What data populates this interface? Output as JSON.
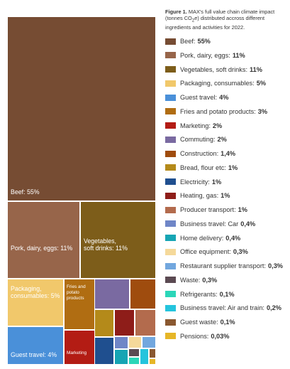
{
  "caption": {
    "figure_label": "Figure 1.",
    "text_before_sub": "MAX's full value chain climate impact (tonnes CO",
    "sub": "2",
    "text_after_sub": "e) distributed accross different ingredients and activities for 2022."
  },
  "chart_data": {
    "type": "treemap",
    "items": [
      {
        "name": "Beef",
        "label": "Beef: 55%",
        "value_text": "55%",
        "value": 55,
        "color": "#764c33"
      },
      {
        "name": "Pork, dairy, eggs",
        "label": "Pork, dairy, eggs: 11%",
        "value_text": "11%",
        "value": 11,
        "color": "#97654a"
      },
      {
        "name": "Vegetables, soft drinks",
        "label": "Vegetables, soft drinks: 11%",
        "value_text": "11%",
        "value": 11,
        "color": "#7d5d1a"
      },
      {
        "name": "Packaging, consumables",
        "label": "Packaging, consumables: 5%",
        "value_text": "5%",
        "value": 5,
        "color": "#f1c86b"
      },
      {
        "name": "Guest travel",
        "label": "Guest travel: 4%",
        "value_text": "4%",
        "value": 4,
        "color": "#4a90d9"
      },
      {
        "name": "Fries and potato products",
        "label": "Fries and potato products: 3%",
        "value_text": "3%",
        "value": 3,
        "color": "#b06d12"
      },
      {
        "name": "Marketing",
        "label": "Marketing: 2%",
        "value_text": "2%",
        "value": 2,
        "color": "#b31c14"
      },
      {
        "name": "Commuting",
        "label": "Commuting: 2%",
        "value_text": "2%",
        "value": 2,
        "color": "#7a6aa1"
      },
      {
        "name": "Construction",
        "label": "Construction: 1,4%",
        "value_text": "1,4%",
        "value": 1.4,
        "color": "#9f4c0e"
      },
      {
        "name": "Bread, flour etc",
        "label": "Bread, flour etc: 1%",
        "value_text": "1%",
        "value": 1,
        "color": "#b48a1a"
      },
      {
        "name": "Electricity",
        "label": "Electricity: 1%",
        "value_text": "1%",
        "value": 1,
        "color": "#1f4f8f"
      },
      {
        "name": "Heating, gas",
        "label": "Heating, gas: 1%",
        "value_text": "1%",
        "value": 1,
        "color": "#8e1d19"
      },
      {
        "name": "Producer transport",
        "label": "Producer transport: 1%",
        "value_text": "1%",
        "value": 1,
        "color": "#b36b4d"
      },
      {
        "name": "Business travel: Car",
        "label": "Business travel: Car 0,4%",
        "value_text": "0,4%",
        "value": 0.4,
        "color": "#6f86c7"
      },
      {
        "name": "Home delivery",
        "label": "Home delivery: 0,4%",
        "value_text": "0,4%",
        "value": 0.4,
        "color": "#16a5b4"
      },
      {
        "name": "Office equipment",
        "label": "Office equipment: 0,3%",
        "value_text": "0,3%",
        "value": 0.3,
        "color": "#f5d99a"
      },
      {
        "name": "Restaurant supplier transport",
        "label": "Restaurant supplier transport: 0,3%",
        "value_text": "0,3%",
        "value": 0.3,
        "color": "#72a7de"
      },
      {
        "name": "Waste",
        "label": "Waste: 0,3%",
        "value_text": "0,3%",
        "value": 0.3,
        "color": "#5b4a52"
      },
      {
        "name": "Refrigerants",
        "label": "Refrigerants: 0,1%",
        "value_text": "0,1%",
        "value": 0.1,
        "color": "#2bd6b8"
      },
      {
        "name": "Business travel: Air and train",
        "label": "Business travel: Air and train: 0,2%",
        "value_text": "0,2%",
        "value": 0.2,
        "color": "#24c4dd"
      },
      {
        "name": "Guest waste",
        "label": "Guest waste: 0,1%",
        "value_text": "0,1%",
        "value": 0.1,
        "color": "#8a5830"
      },
      {
        "name": "Pensions",
        "label": "Pensions: 0,03%",
        "value_text": "0,03%",
        "value": 0.03,
        "color": "#e6b627"
      }
    ],
    "tile_labels": [
      {
        "item": 0,
        "lines": [
          "Beef: 55%"
        ]
      },
      {
        "item": 1,
        "lines": [
          "Pork, dairy, eggs: 11%"
        ]
      },
      {
        "item": 2,
        "lines": [
          "Vegetables,",
          "soft drinks: 11%"
        ]
      },
      {
        "item": 3,
        "lines": [
          "Packaging,",
          "consumables: 5%"
        ]
      },
      {
        "item": 4,
        "lines": [
          "Guest travel: 4%"
        ]
      },
      {
        "item": 5,
        "lines": [
          "Fries and",
          "potato",
          "products"
        ]
      },
      {
        "item": 6,
        "lines": [
          "Marketing"
        ]
      }
    ]
  }
}
